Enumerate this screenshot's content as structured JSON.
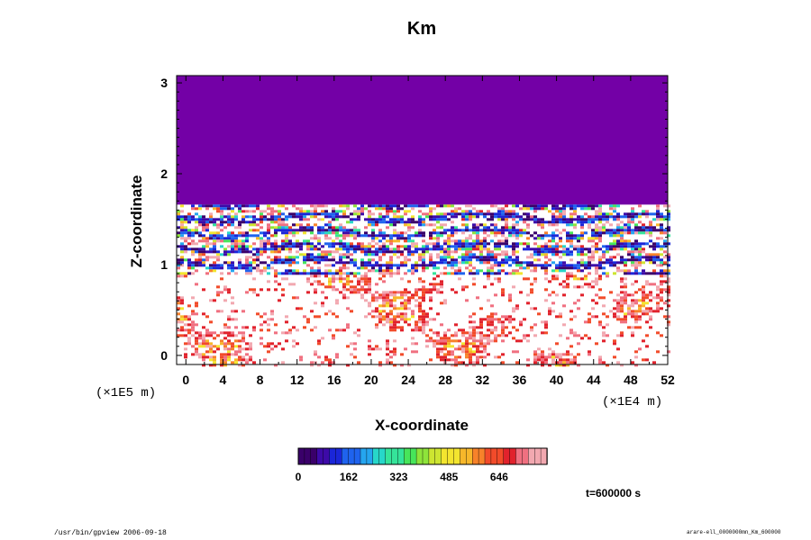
{
  "chart_data": {
    "type": "heatmap",
    "title": "Km",
    "xlabel": "X-coordinate",
    "ylabel": "Z-coordinate",
    "x_scale_note": "(×1E4 m)",
    "y_scale_note": "(×1E5 m)",
    "xlim": [
      -1,
      52
    ],
    "ylim": [
      -0.1,
      3.08
    ],
    "x_ticks": [
      "0",
      "4",
      "8",
      "12",
      "16",
      "20",
      "24",
      "28",
      "32",
      "36",
      "40",
      "44",
      "48",
      "52"
    ],
    "y_ticks": [
      "0",
      "1",
      "2",
      "3"
    ],
    "colorbar": {
      "range": [
        0,
        800
      ],
      "ticks": [
        "0",
        "162",
        "323",
        "485",
        "646"
      ],
      "colors": [
        "#3a006a",
        "#3d0aa8",
        "#1a26d8",
        "#1f63ee",
        "#25a5ef",
        "#27d7c9",
        "#35e49a",
        "#47e55a",
        "#8ee43a",
        "#cde531",
        "#f3e52f",
        "#f7b72a",
        "#f7822a",
        "#f24b2a",
        "#e1222c",
        "#f07080",
        "#f2a8b0"
      ]
    },
    "time_label": "t=600000 s",
    "field_bands": [
      {
        "z_range": [
          1.66,
          3.08
        ],
        "value": 0,
        "description": "uniform"
      },
      {
        "z_range": [
          0.9,
          1.66
        ],
        "value": "mixed 0-800",
        "description": "turbulent layers"
      },
      {
        "z_range": [
          -0.1,
          0.9
        ],
        "value": "0-800 sparse",
        "description": "scattered patches"
      }
    ]
  },
  "footer": {
    "left": "/usr/bin/gpview 2006-09-18",
    "right": "arare-ell_0000000mn_Km_600000"
  },
  "colors": {
    "top_band": "#7300a6",
    "background": "#ffffff"
  }
}
